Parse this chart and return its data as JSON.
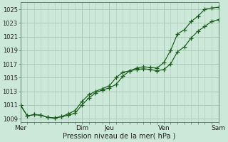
{
  "background_color": "#cce8d8",
  "grid_color": "#aaccbb",
  "line_color": "#1a5c1a",
  "ylim": [
    1008.5,
    1026.0
  ],
  "yticks": [
    1009,
    1011,
    1013,
    1015,
    1017,
    1019,
    1021,
    1023,
    1025
  ],
  "xtick_labels": [
    "Mer",
    "Dim",
    "Jeu",
    "Ven",
    "Sam"
  ],
  "xtick_positions": [
    0,
    9,
    13,
    21,
    29
  ],
  "xlim": [
    0,
    29
  ],
  "xlabel": "Pression niveau de la mer( hPa )",
  "line1_x": [
    0,
    1,
    2,
    3,
    4,
    5,
    6,
    7,
    8,
    9,
    10,
    11,
    12,
    13,
    14,
    15,
    16,
    17,
    18,
    19,
    20,
    21,
    22,
    23,
    24,
    25,
    26,
    27,
    28,
    29
  ],
  "line1_y": [
    1011.0,
    1009.4,
    1009.6,
    1009.5,
    1009.2,
    1009.1,
    1009.3,
    1009.5,
    1009.8,
    1011.0,
    1012.0,
    1012.8,
    1013.2,
    1013.5,
    1014.0,
    1015.2,
    1016.0,
    1016.4,
    1016.6,
    1016.5,
    1016.4,
    1017.2,
    1019.0,
    1021.4,
    1022.0,
    1023.2,
    1024.0,
    1025.0,
    1025.2,
    1025.3
  ],
  "line2_x": [
    0,
    1,
    2,
    3,
    4,
    5,
    6,
    7,
    8,
    9,
    10,
    11,
    12,
    13,
    14,
    15,
    16,
    17,
    18,
    19,
    20,
    21,
    22,
    23,
    24,
    25,
    26,
    27,
    28,
    29
  ],
  "line2_y": [
    1011.0,
    1009.4,
    1009.6,
    1009.5,
    1009.2,
    1009.1,
    1009.3,
    1009.7,
    1010.2,
    1011.5,
    1012.5,
    1013.0,
    1013.4,
    1013.8,
    1015.0,
    1015.8,
    1016.0,
    1016.2,
    1016.3,
    1016.2,
    1016.0,
    1016.2,
    1017.0,
    1018.8,
    1019.5,
    1020.8,
    1021.8,
    1022.5,
    1023.2,
    1023.5
  ]
}
